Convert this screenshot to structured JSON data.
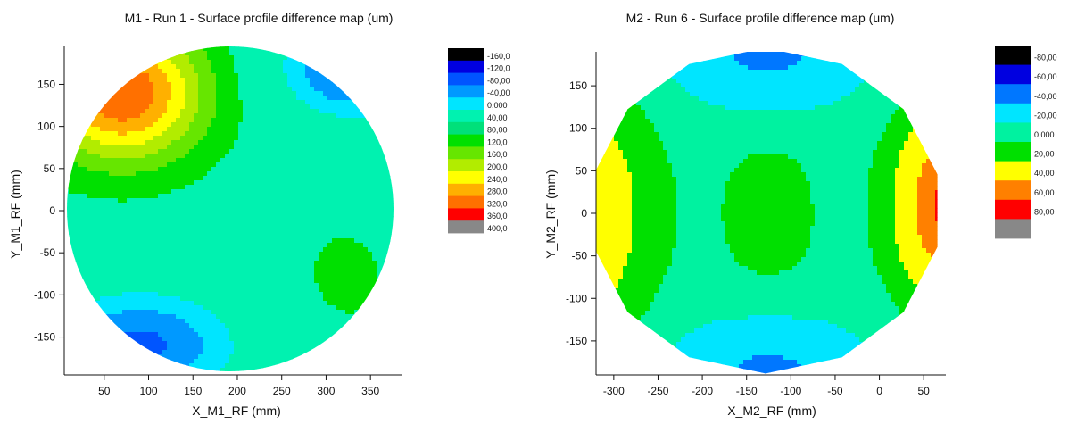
{
  "chart_data": [
    {
      "type": "heatmap",
      "title": "M1 - Run 1 - Surface profile difference map (um)",
      "xlabel": "X_M1_RF (mm)",
      "ylabel": "Y_M1_RF (mm)",
      "xlim": [
        5,
        385
      ],
      "ylim": [
        -195,
        195
      ],
      "x_ticks": [
        "50",
        "100",
        "150",
        "200",
        "250",
        "300",
        "350"
      ],
      "y_ticks": [
        "150",
        "100",
        "50",
        "0",
        "-50",
        "-100",
        "-150"
      ],
      "x_tick_values": [
        50,
        100,
        150,
        200,
        250,
        300,
        350
      ],
      "y_tick_values": [
        150,
        100,
        50,
        0,
        -50,
        -100,
        -150
      ],
      "grid": false,
      "legend_position": "right",
      "legend": {
        "labels": [
          "-160,0",
          "-120,0",
          "-80,00",
          "-40,00",
          "0,000",
          "40,00",
          "80,00",
          "120,0",
          "160,0",
          "200,0",
          "240,0",
          "280,0",
          "320,0",
          "360,0",
          "400,0"
        ],
        "colors": [
          "#000000",
          "#0000e0",
          "#0055ff",
          "#0099ff",
          "#00e5ff",
          "#00f2b0",
          "#00e07a",
          "#00e000",
          "#66e600",
          "#b2ec00",
          "#ffff00",
          "#ffb000",
          "#ff7000",
          "#ff0000",
          "#888888"
        ]
      },
      "contour_levels_mapping": {
        "-40,00": 3,
        "0,000": 4,
        "40,00": 5,
        "80,00": 6,
        "120,0": 7,
        "160,0": 8,
        "200,0": 9,
        "240,0": 10,
        "280,0": 11,
        "320,0": 12
      }
    },
    {
      "type": "heatmap",
      "title": "M2 - Run 6 - Surface profile difference map (um)",
      "xlabel": "X_M2_RF (mm)",
      "ylabel": "Y_M2_RF (mm)",
      "xlim": [
        -320,
        75
      ],
      "ylim": [
        -190,
        190
      ],
      "x_ticks": [
        "-300",
        "-250",
        "-200",
        "-150",
        "-100",
        "-50",
        "0",
        "50"
      ],
      "y_ticks": [
        "150",
        "100",
        "50",
        "0",
        "-50",
        "-100",
        "-150"
      ],
      "x_tick_values": [
        -300,
        -250,
        -200,
        -150,
        -100,
        -50,
        0,
        50
      ],
      "y_tick_values": [
        150,
        100,
        50,
        0,
        -50,
        -100,
        -150
      ],
      "grid": false,
      "legend_position": "right",
      "legend": {
        "labels": [
          "-80,00",
          "-60,00",
          "-40,00",
          "-20,00",
          "0,000",
          "20,00",
          "40,00",
          "60,00",
          "80,00"
        ],
        "colors": [
          "#000000",
          "#0000e0",
          "#0077ff",
          "#00e5ff",
          "#00f2a0",
          "#00e000",
          "#ffff00",
          "#ff8000",
          "#ff0000",
          "#888888"
        ]
      }
    }
  ]
}
